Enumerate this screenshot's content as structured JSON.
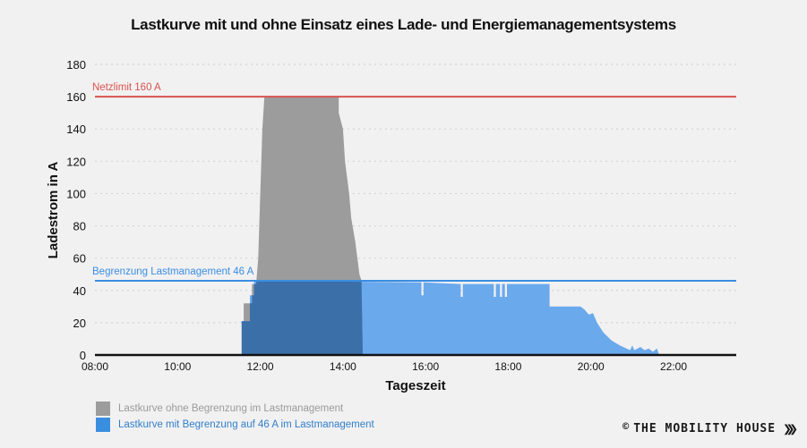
{
  "chart_data": {
    "type": "area",
    "title": "Lastkurve mit und ohne Einsatz eines Lade- und Energiemanagementsystems",
    "xlabel": "Tageszeit",
    "ylabel": "Ladestrom in A",
    "xlim": [
      8,
      23.5
    ],
    "ylim": [
      0,
      180
    ],
    "yticks": [
      0,
      20,
      40,
      60,
      80,
      100,
      120,
      140,
      160,
      180
    ],
    "xticks": [
      {
        "value": 8,
        "label": "08:00"
      },
      {
        "value": 10,
        "label": "10:00"
      },
      {
        "value": 12,
        "label": "12:00"
      },
      {
        "value": 14,
        "label": "14:00"
      },
      {
        "value": 16,
        "label": "16:00"
      },
      {
        "value": 18,
        "label": "18:00"
      },
      {
        "value": 20,
        "label": "20:00"
      },
      {
        "value": 22,
        "label": "22:00"
      }
    ],
    "grid": true,
    "reference_lines": [
      {
        "name": "netzlimit",
        "label": "Netzlimit 160 A",
        "value": 160,
        "color": "#d9534f"
      },
      {
        "name": "begrenzung",
        "label": "Begrenzung Lastmanagement 46 A",
        "value": 46,
        "color": "#3a8ee0"
      }
    ],
    "series": [
      {
        "name": "Lastkurve ohne Begrenzung im Lastmanagement",
        "color": "#9c9c9c",
        "points": [
          [
            11.55,
            0
          ],
          [
            11.55,
            21
          ],
          [
            11.6,
            21
          ],
          [
            11.6,
            32
          ],
          [
            11.8,
            32
          ],
          [
            11.8,
            44
          ],
          [
            11.9,
            44
          ],
          [
            11.95,
            60
          ],
          [
            12.0,
            100
          ],
          [
            12.05,
            140
          ],
          [
            12.1,
            160
          ],
          [
            13.9,
            160
          ],
          [
            13.9,
            150
          ],
          [
            14.0,
            140
          ],
          [
            14.05,
            120
          ],
          [
            14.1,
            110
          ],
          [
            14.15,
            100
          ],
          [
            14.2,
            85
          ],
          [
            14.3,
            70
          ],
          [
            14.35,
            60
          ],
          [
            14.4,
            50
          ],
          [
            14.45,
            46
          ],
          [
            14.48,
            0
          ]
        ]
      },
      {
        "name": "Lastkurve mit Begrenzung auf 46 A im Lastmanagement",
        "color": "#5ea3ec",
        "points": [
          [
            11.55,
            0
          ],
          [
            11.55,
            21
          ],
          [
            11.75,
            21
          ],
          [
            11.75,
            37
          ],
          [
            11.85,
            37
          ],
          [
            11.85,
            46
          ],
          [
            15.9,
            45
          ],
          [
            15.9,
            37
          ],
          [
            15.95,
            37
          ],
          [
            15.95,
            45
          ],
          [
            16.85,
            44
          ],
          [
            16.85,
            36
          ],
          [
            16.9,
            36
          ],
          [
            16.9,
            44
          ],
          [
            17.65,
            44
          ],
          [
            17.65,
            36
          ],
          [
            17.7,
            36
          ],
          [
            17.7,
            44
          ],
          [
            17.8,
            44
          ],
          [
            17.8,
            36
          ],
          [
            17.85,
            36
          ],
          [
            17.85,
            44
          ],
          [
            17.92,
            44
          ],
          [
            17.92,
            36
          ],
          [
            17.97,
            36
          ],
          [
            17.97,
            44
          ],
          [
            19.0,
            44
          ],
          [
            19.0,
            30
          ],
          [
            19.75,
            30
          ],
          [
            19.85,
            28
          ],
          [
            19.95,
            25
          ],
          [
            20.05,
            26
          ],
          [
            20.15,
            20
          ],
          [
            20.3,
            14
          ],
          [
            20.5,
            9
          ],
          [
            20.7,
            6
          ],
          [
            20.95,
            3
          ],
          [
            21.0,
            6
          ],
          [
            21.05,
            3
          ],
          [
            21.2,
            5
          ],
          [
            21.3,
            3
          ],
          [
            21.4,
            4
          ],
          [
            21.5,
            2
          ],
          [
            21.6,
            4
          ],
          [
            21.65,
            0
          ]
        ]
      }
    ],
    "legend_position": "bottom-left"
  },
  "legend": {
    "items": [
      {
        "label": "Lastkurve ohne Begrenzung im Lastmanagement",
        "color": "#9c9c9c"
      },
      {
        "label": "Lastkurve mit Begrenzung auf 46 A im Lastmanagement",
        "color": "#3a8ee0"
      }
    ]
  },
  "brand": {
    "copyright": "©",
    "name": "THE MOBILITY HOUSE",
    "chevrons": "❯❯❯"
  }
}
